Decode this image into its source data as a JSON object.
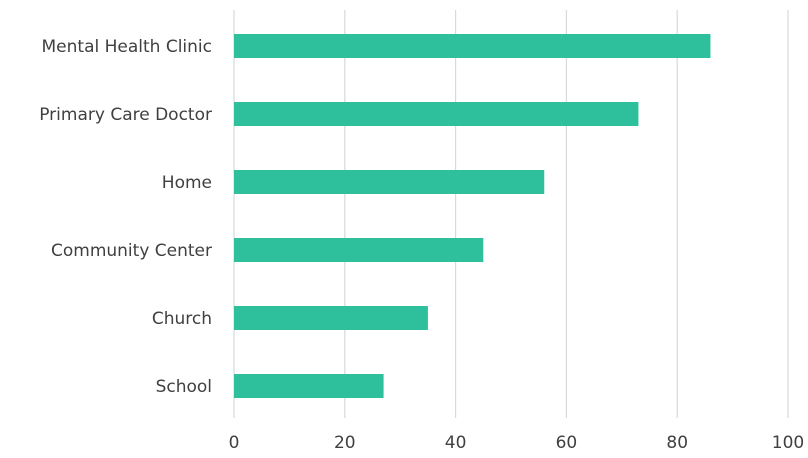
{
  "chart_data": {
    "type": "bar",
    "orientation": "horizontal",
    "categories": [
      "Mental Health Clinic",
      "Primary Care Doctor",
      "Home",
      "Community Center",
      "Church",
      "School"
    ],
    "values": [
      86,
      73,
      56,
      45,
      35,
      27
    ],
    "xlim": [
      0,
      100
    ],
    "xticks": [
      0,
      20,
      40,
      60,
      80,
      100
    ],
    "title": "",
    "xlabel": "",
    "ylabel": "",
    "grid": "vertical",
    "legend": "none",
    "bar_color": "#2ebf9c",
    "grid_color": "#d9d9d9",
    "text_color": "#404040"
  }
}
